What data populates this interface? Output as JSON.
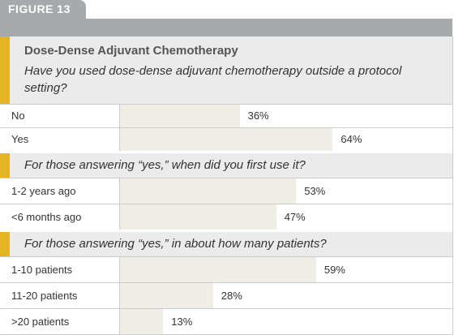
{
  "figure_label": "FIGURE 13",
  "title": "Dose-Dense Adjuvant Chemotherapy",
  "chart_data": [
    {
      "type": "bar",
      "orientation": "horizontal",
      "title": "Have you used dose-dense adjuvant chemotherapy outside a protocol setting?",
      "categories": [
        "No",
        "Yes"
      ],
      "values": [
        36,
        64
      ],
      "value_labels": [
        "36%",
        "64%"
      ],
      "xlim": [
        0,
        100
      ],
      "color": "#efede6"
    },
    {
      "type": "bar",
      "orientation": "horizontal",
      "title": "For those answering “yes,” when did you first use it?",
      "categories": [
        "1-2 years ago",
        "<6 months ago"
      ],
      "values": [
        53,
        47
      ],
      "value_labels": [
        "53%",
        "47%"
      ],
      "xlim": [
        0,
        100
      ],
      "color": "#efede6"
    },
    {
      "type": "bar",
      "orientation": "horizontal",
      "title": "For those answering “yes,” in about how many patients?",
      "categories": [
        "1-10 patients",
        "11-20 patients",
        ">20 patients"
      ],
      "values": [
        59,
        28,
        13
      ],
      "value_labels": [
        "59%",
        "28%",
        "13%"
      ],
      "xlim": [
        0,
        100
      ],
      "color": "#efede6"
    }
  ]
}
